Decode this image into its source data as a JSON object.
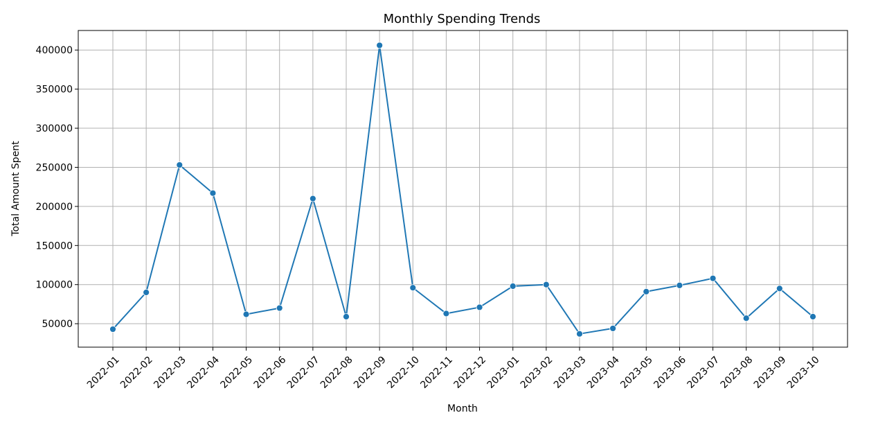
{
  "chart_data": {
    "type": "line",
    "title": "Monthly Spending Trends",
    "xlabel": "Month",
    "ylabel": "Total Amount Spent",
    "categories": [
      "2022-01",
      "2022-02",
      "2022-03",
      "2022-04",
      "2022-05",
      "2022-06",
      "2022-07",
      "2022-08",
      "2022-09",
      "2022-10",
      "2022-11",
      "2022-12",
      "2023-01",
      "2023-02",
      "2023-03",
      "2023-04",
      "2023-05",
      "2023-06",
      "2023-07",
      "2023-08",
      "2023-09",
      "2023-10"
    ],
    "series": [
      {
        "values": [
          43000,
          90000,
          253000,
          217000,
          62000,
          70000,
          210000,
          59000,
          406000,
          96000,
          63000,
          71000,
          98000,
          100000,
          37000,
          44000,
          91000,
          99000,
          108000,
          57000,
          95000,
          59000
        ]
      }
    ],
    "yticks": [
      50000,
      100000,
      150000,
      200000,
      250000,
      300000,
      350000,
      400000
    ],
    "ytick_labels": [
      "50000",
      "100000",
      "150000",
      "200000",
      "250000",
      "300000",
      "350000",
      "400000"
    ],
    "ylim": [
      20000,
      425000
    ],
    "grid": true,
    "legend": false,
    "line_color": "#1f77b4"
  }
}
